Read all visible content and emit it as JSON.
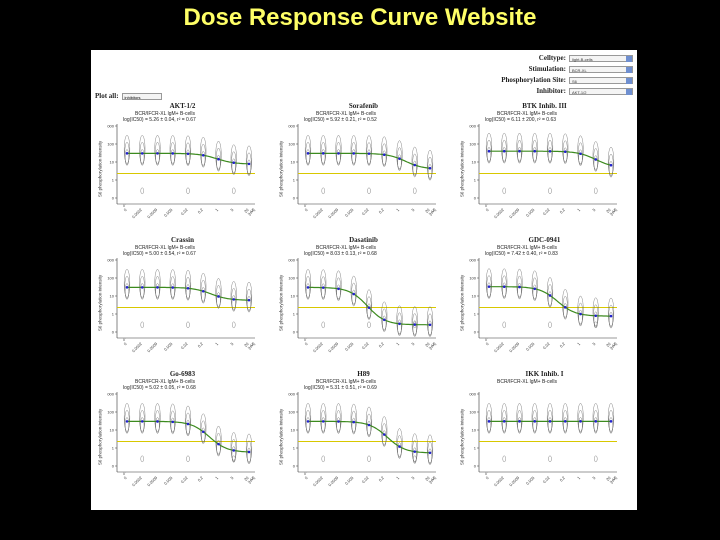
{
  "slide": {
    "title": "Dose Response Curve Website"
  },
  "controls": {
    "celltype": {
      "label": "Celltype:",
      "value": "light-B-cells"
    },
    "stimulation": {
      "label": "Stimulation:",
      "value": "BCR-XL"
    },
    "site": {
      "label": "Phosphorylation Site:",
      "value": "S6"
    },
    "inhibitor": {
      "label": "Inhibitor:",
      "value": "AKT-1/2"
    }
  },
  "plot_all": {
    "label": "Plot all:",
    "value": "inhibitors"
  },
  "ylabel": "S6 phosphorylation intensity",
  "colors": {
    "fit": "#3c8a1e",
    "baseline": "#d8c800",
    "points": "#2222cc",
    "contour": "#666666"
  },
  "x_ticks": [
    "0",
    "0.0002",
    "0.0009",
    "0.005",
    "0.02",
    "0.2",
    "1",
    "5",
    "20",
    "[uM]"
  ],
  "y_ticks": [
    "1000",
    "100",
    "10",
    "1",
    "0"
  ],
  "panels": [
    {
      "title": "AKT-1/2",
      "line1": "BCR/IFCR-XL lgM+ B-cells",
      "line2": "log(IC50) = 5.26 ± 0.04, r² = 0.67",
      "ic50": 5.9,
      "top": 0.62,
      "bottom": 0.47
    },
    {
      "title": "Sorafenib",
      "line1": "BCR/IFCR-XL lgM+ B-cells",
      "line2": "log(IC50) = 5.92 ± 0.21, r² = 0.52",
      "ic50": 6.4,
      "top": 0.62,
      "bottom": 0.4
    },
    {
      "title": "BTK Inhib. III",
      "line1": "BCR/IFCR-XL lgM+ B-cells",
      "line2": "log(IC50) = 6.11 ± 200, r² = 0.63",
      "ic50": 7.0,
      "top": 0.65,
      "bottom": 0.42
    },
    {
      "title": "Crassin",
      "line1": "BCR/IFCR-XL lgM+ B-cells",
      "line2": "log(IC50) = 5.00 ± 0.54, r² = 0.67",
      "ic50": 5.5,
      "top": 0.62,
      "bottom": 0.44
    },
    {
      "title": "Dasatinib",
      "line1": "BCR/IFCR-XL lgM+ B-cells",
      "line2": "log(IC50) = 8.03 ± 0.13, r² = 0.68",
      "ic50": 3.9,
      "top": 0.62,
      "bottom": 0.1
    },
    {
      "title": "GDC-0941",
      "line1": "BCR/IFCR-XL lgM+ B-cells",
      "line2": "log(IC50) = 7.42 ± 0.40, r² = 0.83",
      "ic50": 4.5,
      "top": 0.63,
      "bottom": 0.22
    },
    {
      "title": "Go-6983",
      "line1": "BCR/IFCR-XL lgM+ B-cells",
      "line2": "log(IC50) = 5.02 ± 0.05, r² = 0.68",
      "ic50": 5.4,
      "top": 0.62,
      "bottom": 0.19
    },
    {
      "title": "H89",
      "line1": "BCR/IFCR-XL lgM+ B-cells",
      "line2": "log(IC50) = 5.31 ± 0.51, r² = 0.69",
      "ic50": 5.2,
      "top": 0.62,
      "bottom": 0.18
    },
    {
      "title": "IKK Inhib. I",
      "line1": "BCR/IFCR-XL lgM+ B-cells",
      "line2": "",
      "ic50": 99,
      "top": 0.62,
      "bottom": 0.62
    }
  ]
}
